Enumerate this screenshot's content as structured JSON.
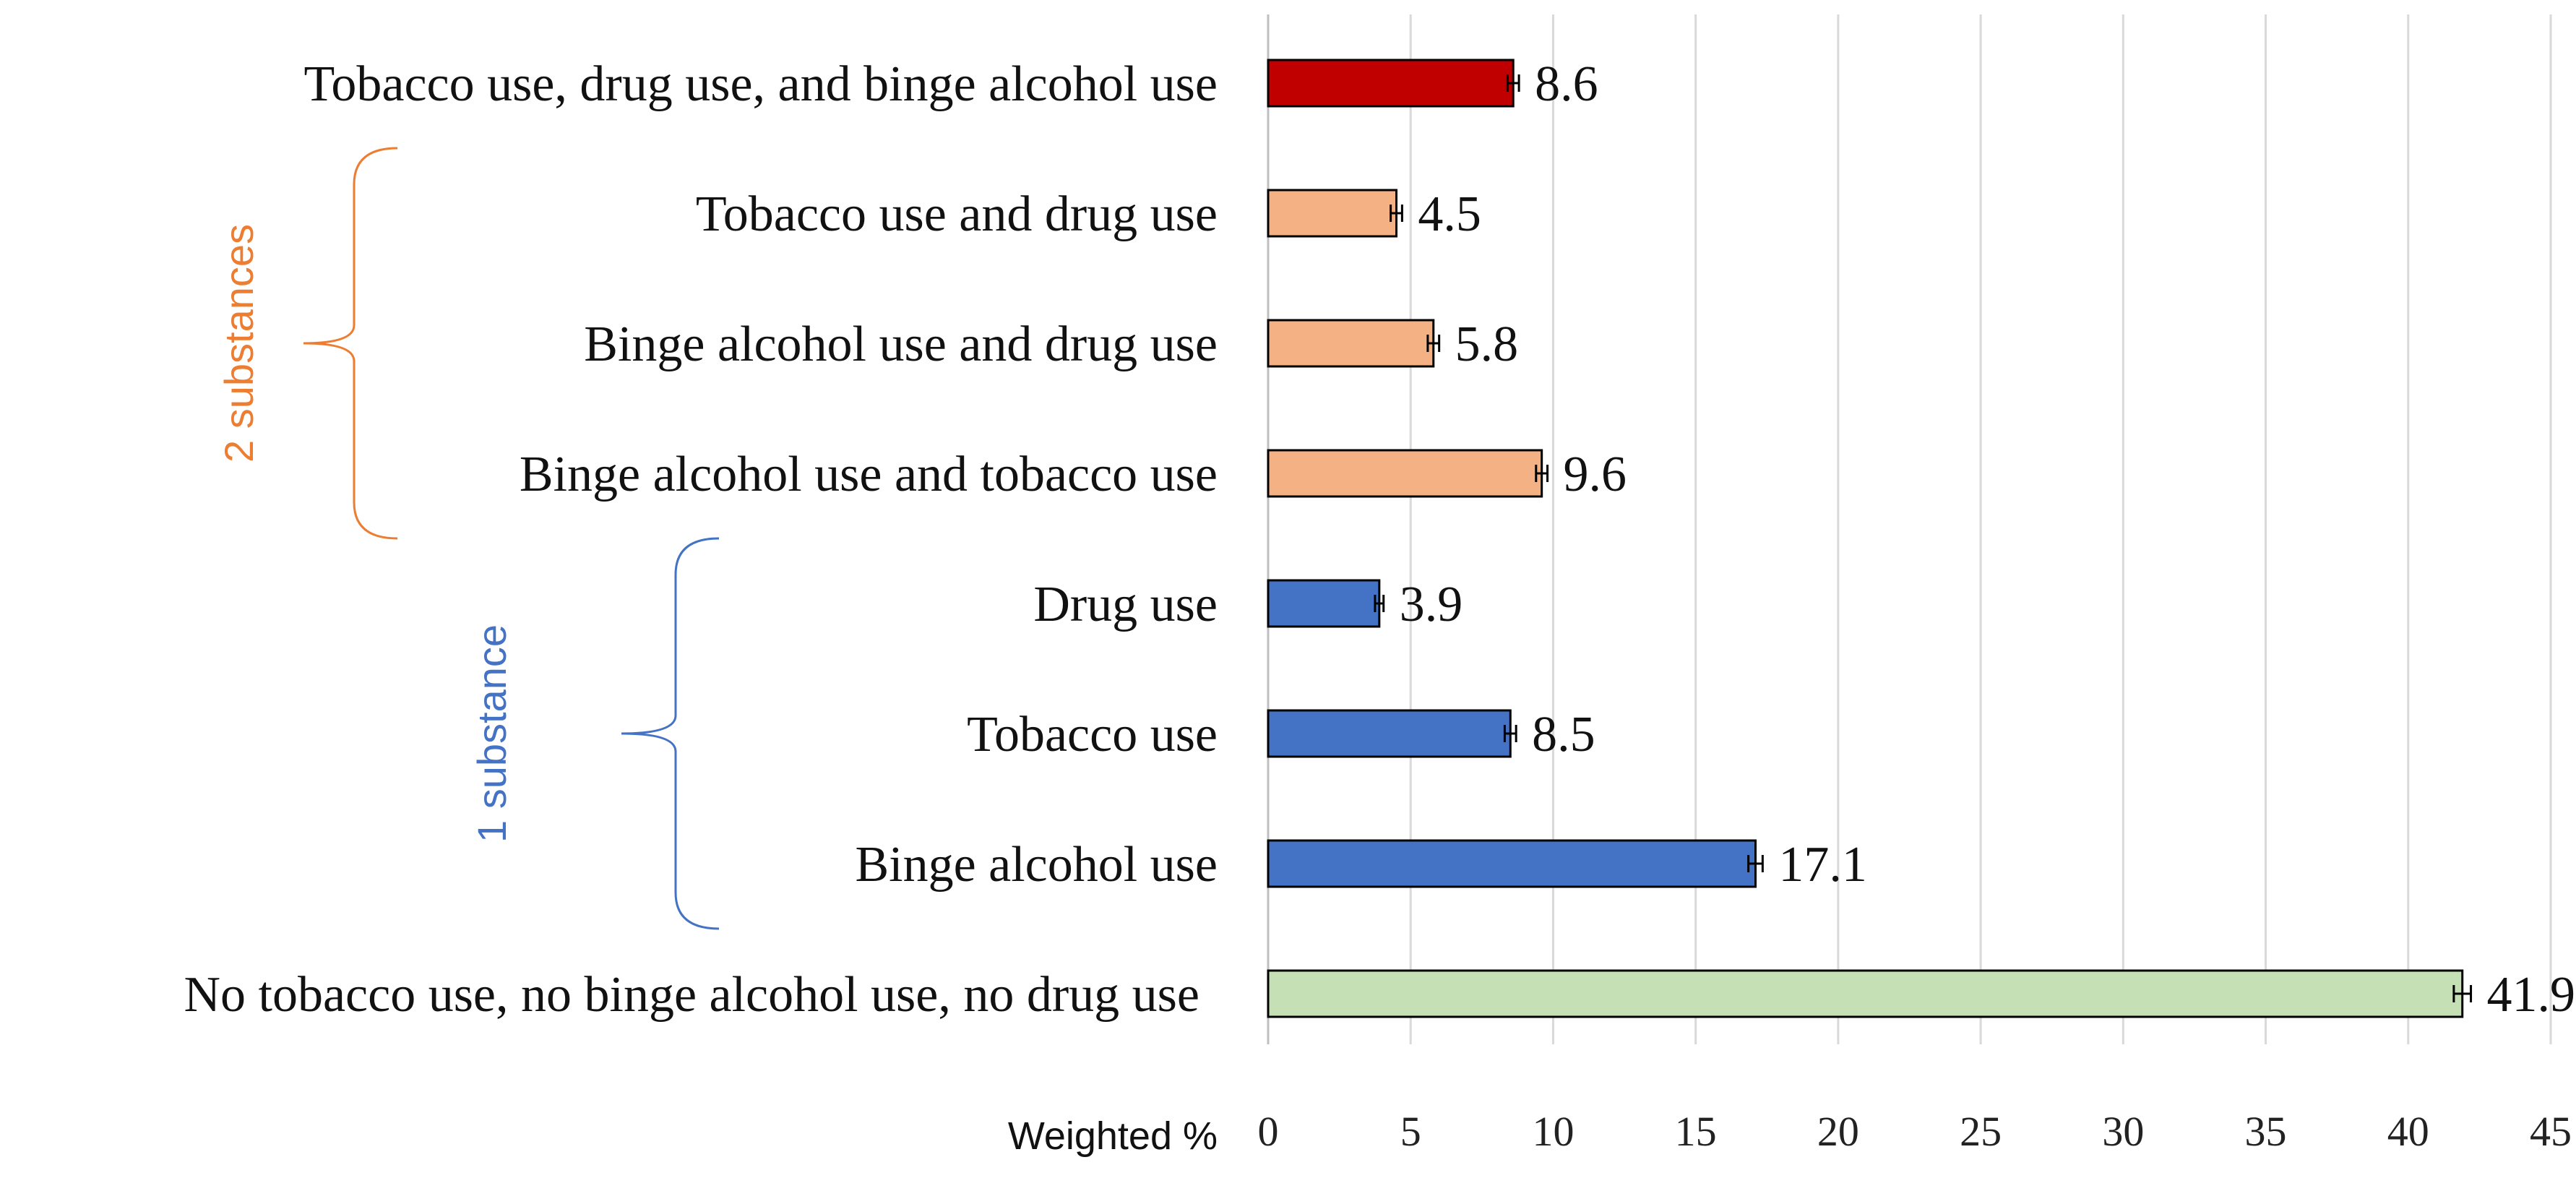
{
  "chart_data": {
    "type": "bar",
    "orientation": "horizontal",
    "title": "",
    "xlabel": "Weighted %",
    "ylabel": "",
    "xlim": [
      0,
      45
    ],
    "xticks": [
      0,
      5,
      10,
      15,
      20,
      25,
      30,
      35,
      40,
      45
    ],
    "grid": "vertical",
    "error_bars": true,
    "categories": [
      "Tobacco use, drug use, and binge alcohol use",
      "Tobacco use and drug use",
      "Binge alcohol use and drug use",
      "Binge alcohol use and tobacco use",
      "Drug use",
      "Tobacco use",
      "Binge alcohol use",
      "No tobacco use, no binge alcohol use, no drug use"
    ],
    "values": [
      8.6,
      4.5,
      5.8,
      9.6,
      3.9,
      8.5,
      17.1,
      41.9
    ],
    "value_labels": [
      "8.6",
      "4.5",
      "5.8",
      "9.6",
      "3.9",
      "8.5",
      "17.1",
      "41.9"
    ],
    "error_half_width": [
      0.2,
      0.2,
      0.2,
      0.2,
      0.15,
      0.2,
      0.25,
      0.3
    ],
    "bar_colors": [
      "#c00000",
      "#f4b183",
      "#f4b183",
      "#f4b183",
      "#4472c4",
      "#4472c4",
      "#4472c4",
      "#c5e0b4"
    ],
    "groups": [
      {
        "label": "2 substances",
        "color": "#ed7d31",
        "from": 1,
        "to": 3
      },
      {
        "label": "1 substance",
        "color": "#4472c4",
        "from": 4,
        "to": 6
      }
    ]
  }
}
